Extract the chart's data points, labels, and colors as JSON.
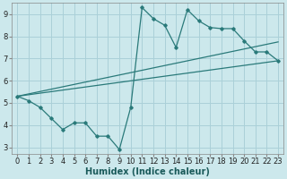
{
  "xlabel": "Humidex (Indice chaleur)",
  "ylabel": "",
  "xlim": [
    -0.5,
    23.5
  ],
  "ylim": [
    2.7,
    9.5
  ],
  "xticks": [
    0,
    1,
    2,
    3,
    4,
    5,
    6,
    7,
    8,
    9,
    10,
    11,
    12,
    13,
    14,
    15,
    16,
    17,
    18,
    19,
    20,
    21,
    22,
    23
  ],
  "yticks": [
    3,
    4,
    5,
    6,
    7,
    8,
    9
  ],
  "bg_color": "#cce8ec",
  "grid_color": "#aad0d8",
  "line_color": "#2a7a7a",
  "line1_x": [
    0,
    1,
    2,
    3,
    4,
    5,
    6,
    7,
    8,
    9,
    10,
    11,
    12,
    13,
    14,
    15,
    16,
    17,
    18,
    19,
    20,
    21,
    22,
    23
  ],
  "line1_y": [
    5.3,
    5.1,
    4.8,
    4.3,
    3.8,
    4.1,
    4.1,
    3.5,
    3.5,
    2.9,
    4.8,
    9.3,
    8.8,
    8.5,
    7.5,
    9.2,
    8.7,
    8.4,
    8.35,
    8.35,
    7.8,
    7.3,
    7.3,
    6.9
  ],
  "line2_x": [
    0,
    23
  ],
  "line2_y": [
    5.3,
    6.9
  ],
  "line3_x": [
    0,
    23
  ],
  "line3_y": [
    5.3,
    7.75
  ],
  "font_size": 6,
  "label_fontsize": 7
}
